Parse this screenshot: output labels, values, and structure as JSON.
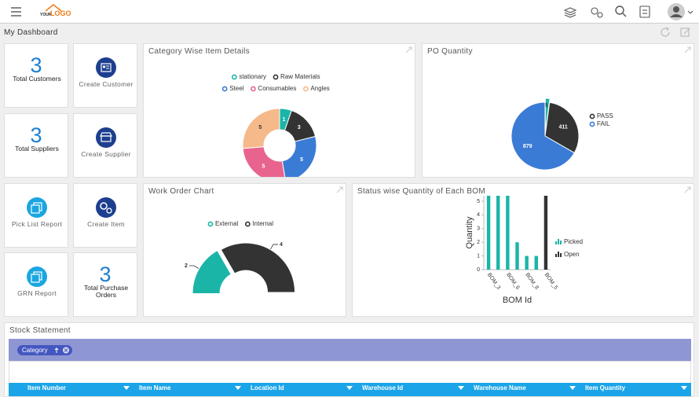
{
  "header": {
    "logo_small": "YOUR",
    "logo": "LOGO"
  },
  "page_title": "My Dashboard",
  "tiles": [
    {
      "value": 3,
      "label": "Total Customers"
    },
    {
      "label": "Create Customer"
    },
    {
      "value": 3,
      "label": "Total Suppliers"
    },
    {
      "label": "Create Supplier"
    },
    {
      "label": "Pick List Report"
    },
    {
      "label": "Create Item"
    },
    {
      "label": "GRN Report"
    },
    {
      "value": 3,
      "label": "Total Purchase Orders"
    }
  ],
  "chart_data": [
    {
      "type": "pie",
      "hole": true,
      "title": "Category Wise Item Details",
      "categories": [
        "stationary",
        "Raw Materials",
        "Steel",
        "Consumables",
        "Angles"
      ],
      "values": [
        1,
        3,
        5,
        5,
        5
      ],
      "colors": [
        "#1bb5a8",
        "#333333",
        "#3a7bd5",
        "#e8648e",
        "#f5b98a"
      ],
      "legend": "top"
    },
    {
      "type": "pie",
      "title": "PO Quantity",
      "categories": [
        null,
        "PASS",
        "FAIL"
      ],
      "values": [
        28,
        411,
        879
      ],
      "colors": [
        "#1bb5a8",
        "#333333",
        "#3a7bd5"
      ],
      "legend": "right"
    },
    {
      "type": "pie",
      "hole": true,
      "half": true,
      "title": "Work Order Chart",
      "categories": [
        "External",
        "Internal"
      ],
      "values": [
        2,
        4
      ],
      "colors": [
        "#1bb5a8",
        "#333333"
      ],
      "legend": "top"
    },
    {
      "type": "bar",
      "stacked": true,
      "title": "Status wise Quantity of Each BOM",
      "x_label": "BOM Id",
      "y_label": "Quantity",
      "categories": [
        "BOM_3",
        null,
        "BOM_6",
        null,
        "BOM_8",
        null,
        "BOM_5"
      ],
      "series": [
        {
          "name": "Picked",
          "color": "#1bb5a8",
          "values": [
            5.4,
            5.4,
            5.4,
            2,
            1,
            1,
            null
          ]
        },
        {
          "name": "Open",
          "color": "#333333",
          "values": [
            null,
            null,
            null,
            null,
            null,
            null,
            5.4
          ]
        }
      ],
      "ylim": [
        0,
        5.4
      ],
      "yticks": [
        0,
        1,
        2,
        3,
        4,
        5
      ],
      "legend": "right"
    }
  ],
  "stock": {
    "title": "Stock Statement",
    "filter": "Category",
    "columns": [
      "Item Number",
      "Item Name",
      "Location Id",
      "Warehouse Id",
      "Warehouse Name",
      "Item Quantity"
    ]
  }
}
